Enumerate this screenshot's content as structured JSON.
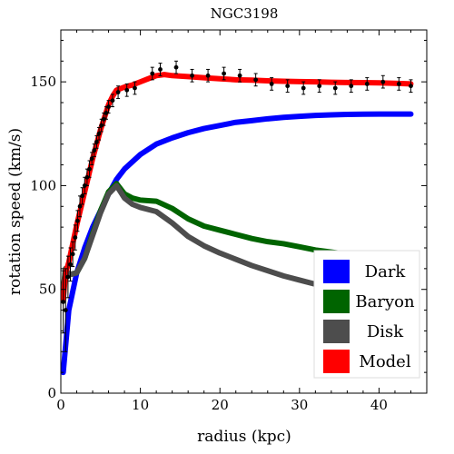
{
  "chart_data": {
    "type": "line",
    "title": "NGC3198",
    "xlabel": "radius (kpc)",
    "ylabel": "rotation speed (km/s)",
    "xlim": [
      0,
      46
    ],
    "ylim": [
      0,
      175
    ],
    "xticks": [
      0,
      10,
      20,
      30,
      40
    ],
    "yticks": [
      0,
      50,
      100,
      150
    ],
    "grid": false,
    "legend_position": "bottom-right",
    "series": [
      {
        "name": "Dark",
        "color": "#0000ff",
        "x": [
          0.3,
          1,
          2,
          3,
          4,
          5,
          6,
          7,
          8,
          10,
          12,
          14,
          16,
          18,
          20,
          22,
          24,
          26,
          28,
          30,
          32,
          34,
          36,
          38,
          40,
          42,
          44
        ],
        "y": [
          10,
          40,
          58,
          70,
          80,
          88,
          96,
          103,
          108,
          115,
          120,
          123,
          125.5,
          127.5,
          129,
          130.5,
          131.3,
          132.2,
          132.9,
          133.4,
          133.8,
          134.1,
          134.3,
          134.4,
          134.5,
          134.5,
          134.5
        ]
      },
      {
        "name": "Baryon",
        "color": "#006400",
        "x": [
          0.3,
          0.6,
          1,
          2,
          3,
          4,
          5,
          6,
          7,
          8,
          9,
          10,
          12,
          14,
          16,
          18,
          20,
          22,
          24,
          26,
          28,
          30,
          32,
          34,
          36,
          38,
          40,
          42,
          44
        ],
        "y": [
          50,
          60,
          57,
          58,
          65,
          77,
          88,
          97,
          101,
          96,
          94,
          93,
          92.5,
          89,
          84,
          80.5,
          78.5,
          76.5,
          74.5,
          73,
          72,
          70.5,
          69,
          68,
          67,
          66,
          65.5,
          65,
          64
        ]
      },
      {
        "name": "Disk",
        "color": "#4d4d4d",
        "x": [
          0.3,
          0.6,
          1,
          2,
          3,
          4,
          5,
          6,
          7,
          8,
          9,
          10,
          12,
          14,
          16,
          18,
          20,
          22,
          24,
          26,
          28,
          30,
          32,
          34,
          36,
          38,
          40,
          42,
          44
        ],
        "y": [
          48,
          60,
          57,
          58,
          65,
          76,
          87,
          96,
          100,
          94,
          91,
          89.5,
          87.5,
          82,
          75.5,
          71,
          67.5,
          64.5,
          61.5,
          59,
          56.5,
          54.5,
          52.5,
          51,
          50,
          49.2,
          48.8,
          48.5,
          48.2
        ]
      },
      {
        "name": "Model",
        "color": "#ff0000",
        "x": [
          0.3,
          0.6,
          1,
          1.5,
          2,
          2.5,
          3,
          3.5,
          4,
          4.5,
          5,
          5.5,
          6,
          6.5,
          7,
          8,
          9,
          10,
          11,
          12,
          13,
          14,
          16,
          18,
          20,
          22,
          24,
          26,
          28,
          30,
          32,
          34,
          36,
          38,
          40,
          42,
          44
        ],
        "y": [
          45,
          58,
          63,
          72,
          81,
          89,
          97,
          105,
          113,
          120,
          127,
          133,
          139,
          143,
          146,
          147.5,
          148.5,
          150,
          151.5,
          153,
          153.5,
          153,
          152.5,
          152,
          151.5,
          151,
          150.8,
          150.5,
          150.3,
          150.1,
          150,
          149.8,
          149.7,
          149.6,
          149.5,
          149.3,
          149
        ]
      }
    ],
    "observations": {
      "name": "data",
      "x": [
        0.3,
        0.6,
        0.9,
        1.2,
        1.5,
        1.8,
        2.1,
        2.4,
        2.7,
        3.0,
        3.3,
        3.6,
        3.9,
        4.2,
        4.5,
        4.8,
        5.1,
        5.4,
        5.7,
        6.0,
        6.5,
        7.2,
        8.3,
        9.3,
        11.5,
        12.5,
        14.5,
        16.5,
        18.5,
        20.5,
        22.5,
        24.5,
        26.5,
        28.5,
        30.5,
        32.5,
        34.5,
        36.5,
        38.5,
        40.5,
        42.5,
        44.0
      ],
      "y": [
        44,
        40,
        56,
        62,
        67,
        75,
        83,
        90,
        95,
        100,
        104,
        108,
        113,
        117,
        121,
        125,
        129,
        132,
        135,
        138,
        141,
        145,
        146,
        147,
        154,
        156,
        157,
        153,
        153,
        154,
        153,
        151,
        149,
        148,
        147,
        148,
        147,
        148,
        149,
        150,
        149,
        148
      ],
      "err": [
        15,
        20,
        10,
        8,
        6,
        6,
        5,
        5,
        4,
        4,
        4,
        4,
        3,
        3,
        3,
        3,
        3,
        3,
        3,
        3,
        3,
        3,
        3,
        3,
        3,
        3,
        3,
        3,
        3,
        3,
        3,
        3,
        3,
        3,
        3,
        3,
        3,
        3,
        3,
        3,
        3,
        3
      ]
    }
  }
}
